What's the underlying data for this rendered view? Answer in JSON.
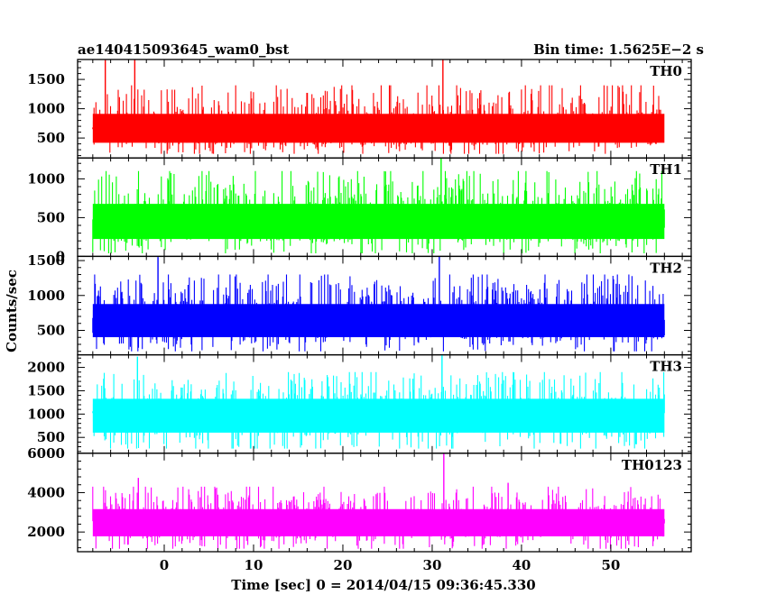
{
  "header": {
    "title": "ae140415093645_wam0_bst",
    "bin_time": "Bin time: 1.5625E−2 s"
  },
  "ylabel": "Counts/sec",
  "xlabel": "Time [sec] 0 = 2014/04/15 09:36:45.330",
  "chart_data": {
    "type": "line",
    "x_range": [
      -8,
      56
    ],
    "xlim": [
      -9.7,
      59
    ],
    "x_ticks": [
      0,
      10,
      20,
      30,
      40,
      50
    ],
    "x_tick_labels": [
      "0",
      "10",
      "20",
      "30",
      "40",
      "50"
    ],
    "bin_time_sec": 0.015625,
    "panels": [
      {
        "name": "TH0",
        "color": "#ff0000",
        "ylim": [
          160,
          1840
        ],
        "y_ticks": [
          500,
          1000,
          1500
        ],
        "y_tick_labels": [
          "500",
          "1000",
          "1500"
        ],
        "mean": 650,
        "min": 230,
        "typical_max": 1400,
        "peaks": [
          {
            "x": -6.6,
            "y": 1830
          },
          {
            "x": -3.3,
            "y": 1840
          },
          {
            "x": 31.2,
            "y": 1840
          }
        ]
      },
      {
        "name": "TH1",
        "color": "#00ff00",
        "ylim": [
          0,
          1270
        ],
        "y_ticks": [
          0,
          500,
          1000
        ],
        "y_tick_labels": [
          "0",
          "500",
          "1000"
        ],
        "mean": 450,
        "min": 40,
        "typical_max": 1100,
        "peaks": [
          {
            "x": 31.0,
            "y": 1270
          }
        ]
      },
      {
        "name": "TH2",
        "color": "#0000ff",
        "ylim": [
          150,
          1560
        ],
        "y_ticks": [
          500,
          1000,
          1500
        ],
        "y_tick_labels": [
          "500",
          "1000",
          "1500"
        ],
        "mean": 650,
        "min": 200,
        "typical_max": 1300,
        "peaks": [
          {
            "x": -0.7,
            "y": 1550
          },
          {
            "x": 30.8,
            "y": 1555
          }
        ]
      },
      {
        "name": "TH3",
        "color": "#00ffff",
        "ylim": [
          160,
          2270
        ],
        "y_ticks": [
          500,
          1000,
          1500,
          2000
        ],
        "y_tick_labels": [
          "500",
          "1000",
          "1500",
          "2000"
        ],
        "mean": 1020,
        "min": 260,
        "typical_max": 1900,
        "peaks": [
          {
            "x": -3.0,
            "y": 2230
          },
          {
            "x": 31.1,
            "y": 2265
          }
        ]
      },
      {
        "name": "TH0123",
        "color": "#ff00ff",
        "ylim": [
          1000,
          6000
        ],
        "y_ticks": [
          2000,
          4000,
          6000
        ],
        "y_tick_labels": [
          "2000",
          "4000",
          "6000"
        ],
        "mean": 2550,
        "min": 1150,
        "typical_max": 4300,
        "peaks": [
          {
            "x": -2.9,
            "y": 4750
          },
          {
            "x": 31.3,
            "y": 6100
          },
          {
            "x": 38.5,
            "y": 4500
          }
        ]
      }
    ]
  }
}
